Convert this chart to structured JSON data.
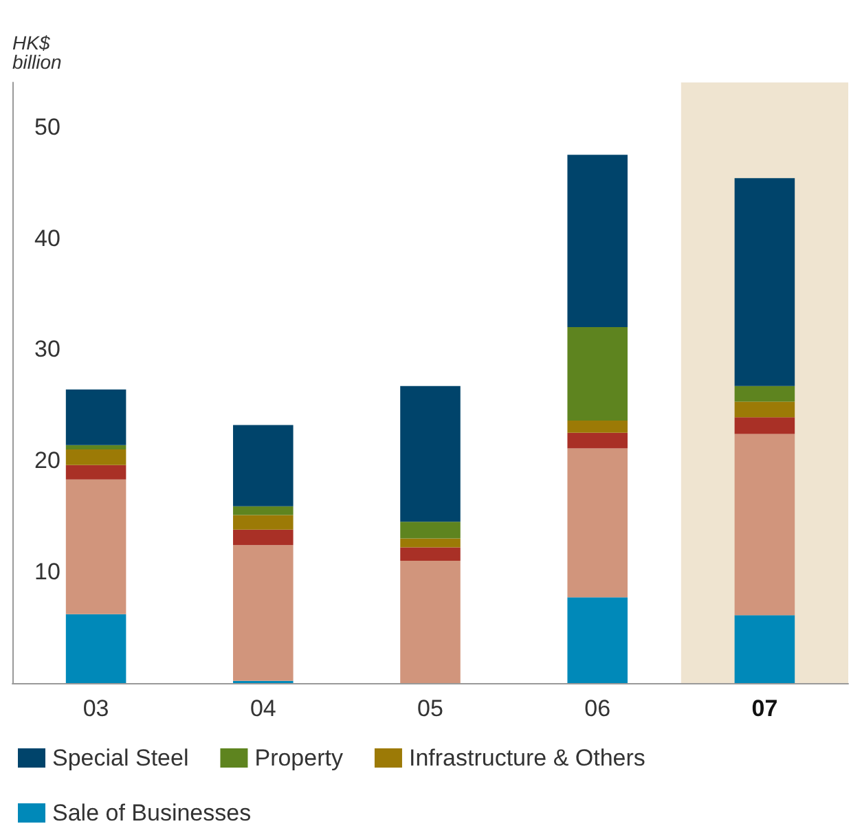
{
  "chart_data": {
    "type": "bar",
    "stacked": true,
    "ylabel": "HK$\nbillion",
    "categories": [
      "03",
      "04",
      "05",
      "06",
      "07"
    ],
    "series": [
      {
        "name": "Sale of Businesses",
        "color": "#0089b9",
        "values": [
          6.2,
          0.2,
          0,
          7.7,
          6.1
        ]
      },
      {
        "color": "#d1957c",
        "values": [
          12.1,
          12.2,
          11.0,
          13.4,
          16.3
        ]
      },
      {
        "color": "#a93026",
        "values": [
          1.3,
          1.4,
          1.2,
          1.4,
          1.5
        ]
      },
      {
        "name": "Infrastructure & Others",
        "color": "#9c7a06",
        "values": [
          1.4,
          1.3,
          0.8,
          1.1,
          1.4
        ]
      },
      {
        "name": "Property",
        "color": "#5e841f",
        "values": [
          0.4,
          0.8,
          1.5,
          8.4,
          1.4
        ]
      },
      {
        "name": "Special Steel",
        "color": "#00446b",
        "values": [
          5.0,
          7.3,
          12.2,
          15.5,
          18.7
        ]
      }
    ],
    "ylim": [
      0,
      54
    ],
    "yticks": [
      10,
      20,
      30,
      40,
      50
    ],
    "bands": [
      {
        "axis": "x",
        "from": "07",
        "to": "07",
        "color": "#efe4d0"
      }
    ],
    "grid": false,
    "legend": "bottom"
  }
}
